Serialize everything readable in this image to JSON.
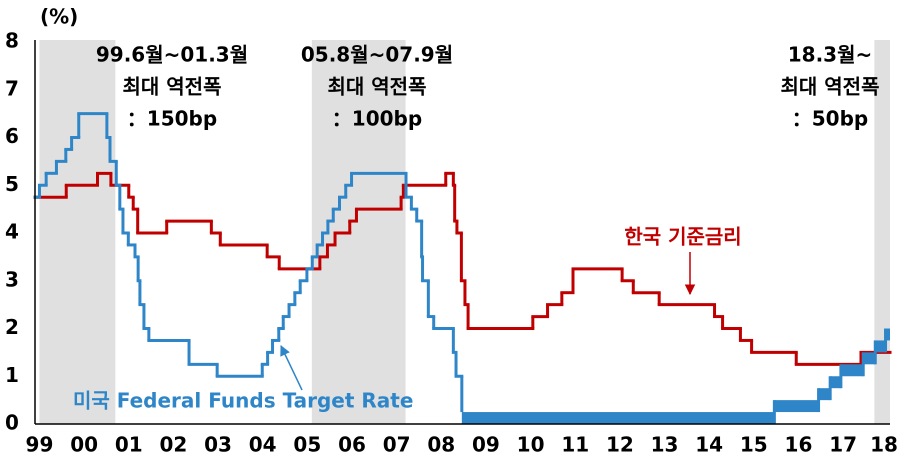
{
  "chart_data": {
    "type": "step",
    "y_unit_label": "(%)",
    "xlim": [
      1999.4,
      2018.55
    ],
    "ylim": [
      0,
      8
    ],
    "yticks": [
      0,
      1,
      2,
      3,
      4,
      5,
      6,
      7,
      8
    ],
    "xticks": [
      {
        "value": 1999.5,
        "label": "99"
      },
      {
        "value": 2000.5,
        "label": "00"
      },
      {
        "value": 2001.5,
        "label": "01"
      },
      {
        "value": 2002.5,
        "label": "02"
      },
      {
        "value": 2003.5,
        "label": "03"
      },
      {
        "value": 2004.5,
        "label": "04"
      },
      {
        "value": 2005.5,
        "label": "05"
      },
      {
        "value": 2006.5,
        "label": "06"
      },
      {
        "value": 2007.5,
        "label": "07"
      },
      {
        "value": 2008.5,
        "label": "08"
      },
      {
        "value": 2009.5,
        "label": "09"
      },
      {
        "value": 2010.5,
        "label": "10"
      },
      {
        "value": 2011.5,
        "label": "11"
      },
      {
        "value": 2012.5,
        "label": "12"
      },
      {
        "value": 2013.5,
        "label": "13"
      },
      {
        "value": 2014.5,
        "label": "14"
      },
      {
        "value": 2015.5,
        "label": "15"
      },
      {
        "value": 2016.5,
        "label": "16"
      },
      {
        "value": 2017.5,
        "label": "17"
      },
      {
        "value": 2018.5,
        "label": "18"
      }
    ],
    "grid": false,
    "shade_color": "#e0e0e0",
    "shaded_periods": [
      {
        "start": 1999.5,
        "end": 2001.2
      },
      {
        "start": 2005.6,
        "end": 2007.7
      },
      {
        "start": 2018.2,
        "end": 2018.55
      }
    ],
    "annotations": [
      {
        "lines": [
          "99.6월~01.3월",
          "최대 역전폭",
          "：150bp"
        ]
      },
      {
        "lines": [
          "05.8월~07.9월",
          "최대 역전폭",
          "：100bp"
        ]
      },
      {
        "lines": [
          "18.3월~",
          "최대 역전폭",
          "：50bp"
        ]
      }
    ],
    "series": [
      {
        "name": "한국 기준금리",
        "color": "#c00000",
        "x": [
          1999.4,
          2000.1,
          2000.8,
          2001.1,
          2001.5,
          2001.6,
          2001.7,
          2002.35,
          2003.35,
          2003.55,
          2004.6,
          2004.87,
          2005.78,
          2005.95,
          2006.12,
          2006.45,
          2006.6,
          2007.6,
          2007.65,
          2008.6,
          2008.77,
          2008.8,
          2008.85,
          2008.95,
          2009.03,
          2009.1,
          2010.55,
          2010.88,
          2011.2,
          2011.45,
          2012.55,
          2012.8,
          2013.38,
          2014.62,
          2014.8,
          2015.2,
          2015.45,
          2016.45,
          2017.9
        ],
        "values": [
          4.75,
          5,
          5.25,
          5,
          4.75,
          4.5,
          4,
          4.25,
          4,
          3.75,
          3.5,
          3.25,
          3.5,
          3.75,
          4,
          4.25,
          4.5,
          4.75,
          5,
          5.25,
          5,
          4.25,
          4,
          3,
          2.5,
          2,
          2.25,
          2.5,
          2.75,
          3.25,
          3,
          2.75,
          2.5,
          2.25,
          2,
          1.75,
          1.5,
          1.25,
          1.5
        ]
      },
      {
        "name": "미국 Federal Funds Target Rate",
        "color": "#2e86c8",
        "x": [
          1999.4,
          1999.5,
          1999.65,
          1999.88,
          2000.09,
          2000.22,
          2000.38,
          2001.01,
          2001.08,
          2001.22,
          2001.3,
          2001.37,
          2001.49,
          2001.64,
          2001.71,
          2001.75,
          2001.84,
          2001.95,
          2002.85,
          2003.48,
          2004.49,
          2004.61,
          2004.72,
          2004.86,
          2004.96,
          2005.09,
          2005.22,
          2005.34,
          2005.49,
          2005.61,
          2005.72,
          2005.84,
          2005.96,
          2006.08,
          2006.22,
          2006.36,
          2006.49,
          2007.71,
          2007.83,
          2007.95,
          2008.06,
          2008.08,
          2008.21,
          2008.33,
          2008.77,
          2008.83,
          2008.96,
          2015.96,
          2016.95,
          2017.21,
          2017.45,
          2017.95,
          2018.22,
          2018.45
        ],
        "values": [
          4.75,
          5,
          5.25,
          5.5,
          5.75,
          6,
          6.5,
          6,
          5.5,
          5,
          4.5,
          4,
          3.75,
          3.5,
          3,
          2.5,
          2,
          1.75,
          1.25,
          1,
          1.25,
          1.5,
          1.75,
          2,
          2.25,
          2.5,
          2.75,
          3,
          3.25,
          3.5,
          3.75,
          4,
          4.25,
          4.5,
          4.75,
          5,
          5.25,
          4.75,
          4.5,
          4.25,
          3.5,
          3,
          2.25,
          2,
          1.5,
          1,
          0.25,
          0.5,
          0.75,
          1,
          1.25,
          1.5,
          1.75,
          2
        ],
        "lower": [
          null,
          null,
          null,
          null,
          null,
          null,
          null,
          null,
          null,
          null,
          null,
          null,
          null,
          null,
          null,
          null,
          null,
          null,
          null,
          null,
          null,
          null,
          null,
          null,
          null,
          null,
          null,
          null,
          null,
          null,
          null,
          null,
          null,
          null,
          null,
          null,
          null,
          null,
          null,
          null,
          null,
          null,
          null,
          null,
          null,
          null,
          0,
          0.25,
          0.5,
          0.75,
          1,
          1.25,
          1.5,
          1.75
        ]
      }
    ]
  }
}
